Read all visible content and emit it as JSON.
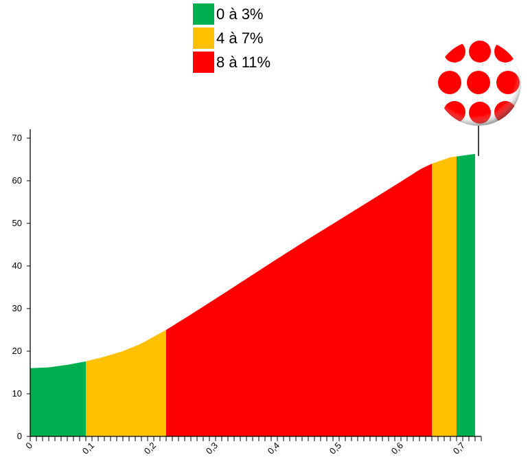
{
  "colors": {
    "green": "#00b050",
    "yellow": "#ffc000",
    "red": "#ff0000",
    "axis": "#000000"
  },
  "legend": {
    "items": [
      {
        "label": "0 à 3%",
        "color": "#00b050"
      },
      {
        "label": "4 à 7%",
        "color": "#ffc000"
      },
      {
        "label": "8 à 11%",
        "color": "#ff0000"
      }
    ]
  },
  "badge": {
    "icon": "polka-dot-jersey-icon",
    "colors": [
      "#ff0000",
      "#ffffff"
    ]
  },
  "chart_data": {
    "type": "area",
    "title": "",
    "xlabel": "",
    "ylabel": "",
    "xlim": [
      0,
      0.73
    ],
    "ylim": [
      0,
      70
    ],
    "y_ticks": [
      0,
      10,
      20,
      30,
      40,
      50,
      60,
      70
    ],
    "x_ticks": [
      0,
      0.1,
      0.2,
      0.3,
      0.4,
      0.5,
      0.6,
      0.7
    ],
    "x_tick_labels": [
      "0",
      "0,1",
      "0,2",
      "0,3",
      "0,4",
      "0,5",
      "0,6",
      "0,7"
    ],
    "x_minor_step": 0.01,
    "grid": false,
    "legend_position": "top-center",
    "profile": {
      "x": [
        0,
        0.03,
        0.06,
        0.09,
        0.12,
        0.15,
        0.18,
        0.22,
        0.26,
        0.3,
        0.35,
        0.4,
        0.45,
        0.5,
        0.55,
        0.6,
        0.64,
        0.68,
        0.72
      ],
      "y": [
        16,
        16.2,
        16.8,
        17.6,
        18.7,
        20,
        21.8,
        25,
        28.6,
        32.3,
        37,
        41.7,
        46.3,
        50.8,
        55.3,
        59.8,
        63.5,
        65.5,
        66.3
      ]
    },
    "segments": [
      {
        "x0": 0,
        "x1": 0.09,
        "color": "#00b050"
      },
      {
        "x0": 0.09,
        "x1": 0.22,
        "color": "#ffc000"
      },
      {
        "x0": 0.22,
        "x1": 0.65,
        "color": "#ff0000"
      },
      {
        "x0": 0.65,
        "x1": 0.69,
        "color": "#ffc000"
      },
      {
        "x0": 0.69,
        "x1": 0.72,
        "color": "#00b050"
      }
    ]
  }
}
